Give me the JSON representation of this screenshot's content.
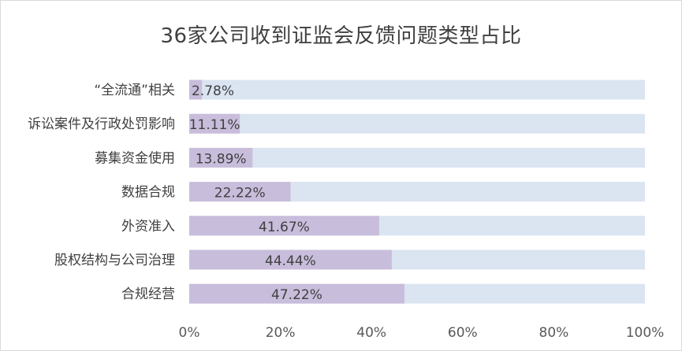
{
  "chart_data": {
    "type": "bar",
    "orientation": "horizontal",
    "stacked_with_remainder": true,
    "title": "36家公司收到证监会反馈问题类型占比",
    "categories": [
      "“全流通”相关",
      "诉讼案件及行政处罚影响",
      "募集资金使用",
      "数据合规",
      "外资准入",
      "股权结构与公司治理",
      "合规经营"
    ],
    "values": [
      2.78,
      11.11,
      13.89,
      22.22,
      41.67,
      44.44,
      47.22
    ],
    "data_labels": [
      "2.78%",
      "11.11%",
      "13.89%",
      "22.22%",
      "41.67%",
      "44.44%",
      "47.22%"
    ],
    "xlim": [
      0,
      100
    ],
    "xticks": [
      "0%",
      "20%",
      "40%",
      "60%",
      "80%",
      "100%"
    ],
    "legend": "none",
    "grid": false,
    "colors": {
      "value_bar": "#c8bddb",
      "remainder_bar": "#dbe4f1",
      "label_text": "#404040"
    }
  }
}
